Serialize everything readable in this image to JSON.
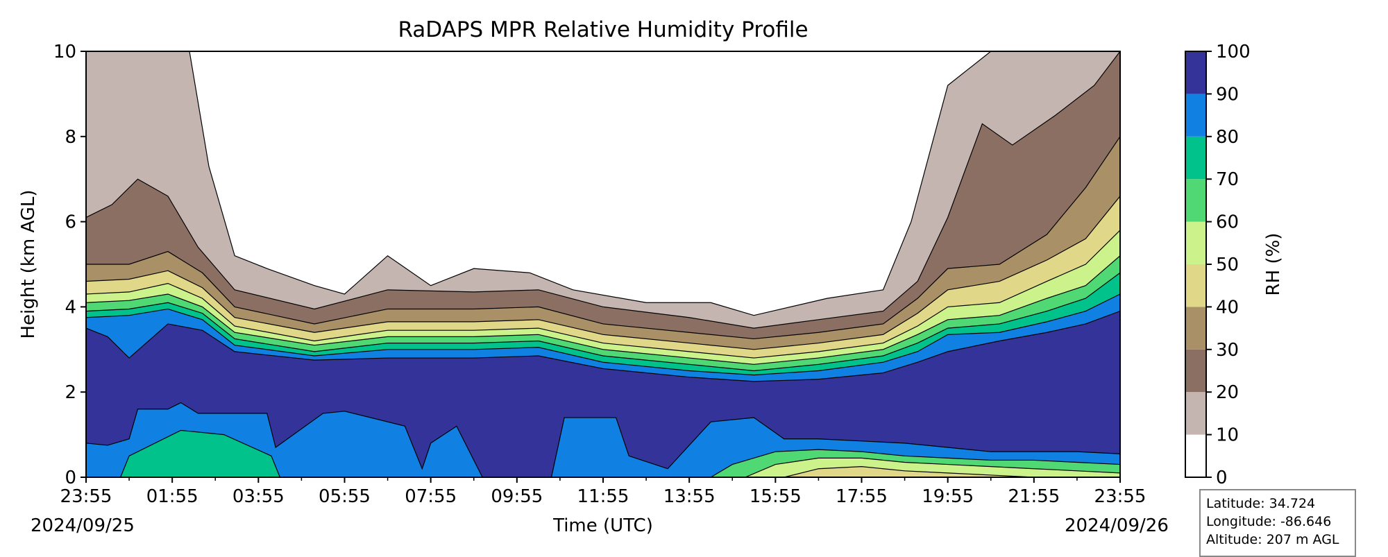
{
  "chart_data": {
    "type": "heatmap",
    "subtype": "filled-contour",
    "title": "RaDAPS MPR Relative Humidity Profile",
    "xlabel": "Time (UTC)",
    "ylabel": "Height (km AGL)",
    "ylim": [
      0,
      10
    ],
    "yticks": [
      "0",
      "2",
      "4",
      "6",
      "8",
      "10"
    ],
    "xticks": [
      "23:55",
      "01:55",
      "03:55",
      "05:55",
      "07:55",
      "09:55",
      "11:55",
      "13:55",
      "15:55",
      "17:55",
      "19:55",
      "21:55",
      "23:55"
    ],
    "start_date": "2024/09/25",
    "end_date": "2024/09/26",
    "colorbar": {
      "label": "RH (%)",
      "levels": [
        0,
        10,
        20,
        30,
        40,
        50,
        60,
        70,
        80,
        90,
        100
      ],
      "tick_labels": [
        "0",
        "10",
        "20",
        "30",
        "40",
        "50",
        "60",
        "70",
        "80",
        "90",
        "100"
      ],
      "colors": [
        "#ffffff",
        "#c5b5b1",
        "#8c6f63",
        "#a99066",
        "#e1d788",
        "#ccf28c",
        "#4fd874",
        "#00c28a",
        "#1080e3",
        "#33339a"
      ]
    },
    "contours": {
      "upper_boundaries_km": [
        {
          "level": 10,
          "points": [
            [
              0,
              10
            ],
            [
              1.0,
              10
            ],
            [
              2.4,
              10
            ],
            [
              2.85,
              7.3
            ],
            [
              3.45,
              5.2
            ],
            [
              4.2,
              4.9
            ],
            [
              5.3,
              4.5
            ],
            [
              6.0,
              4.3
            ],
            [
              7.0,
              5.2
            ],
            [
              8.0,
              4.5
            ],
            [
              9.0,
              4.9
            ],
            [
              10.3,
              4.8
            ],
            [
              11.3,
              4.4
            ],
            [
              13.0,
              4.1
            ],
            [
              14.5,
              4.1
            ],
            [
              15.5,
              3.8
            ],
            [
              17.2,
              4.2
            ],
            [
              18.5,
              4.4
            ],
            [
              19.15,
              6.0
            ],
            [
              20.0,
              9.2
            ],
            [
              21.0,
              10
            ],
            [
              24.0,
              10
            ]
          ]
        },
        {
          "level": 20,
          "points": [
            [
              0,
              6.1
            ],
            [
              0.6,
              6.4
            ],
            [
              1.2,
              7.0
            ],
            [
              1.9,
              6.6
            ],
            [
              2.6,
              5.4
            ],
            [
              3.45,
              4.4
            ],
            [
              5.3,
              3.95
            ],
            [
              7.0,
              4.4
            ],
            [
              9.0,
              4.35
            ],
            [
              10.5,
              4.4
            ],
            [
              12.0,
              4.0
            ],
            [
              14.0,
              3.75
            ],
            [
              15.5,
              3.5
            ],
            [
              17.0,
              3.7
            ],
            [
              18.5,
              3.9
            ],
            [
              19.3,
              4.6
            ],
            [
              20.0,
              6.1
            ],
            [
              20.8,
              8.3
            ],
            [
              21.5,
              7.8
            ],
            [
              22.5,
              8.5
            ],
            [
              23.4,
              9.2
            ],
            [
              24.0,
              10.0
            ]
          ]
        },
        {
          "level": 30,
          "points": [
            [
              0,
              5.0
            ],
            [
              1.0,
              5.0
            ],
            [
              1.9,
              5.3
            ],
            [
              2.7,
              4.8
            ],
            [
              3.45,
              4.0
            ],
            [
              5.3,
              3.6
            ],
            [
              7.0,
              3.95
            ],
            [
              9.0,
              3.95
            ],
            [
              10.5,
              4.0
            ],
            [
              12.0,
              3.6
            ],
            [
              14.0,
              3.4
            ],
            [
              15.5,
              3.25
            ],
            [
              17.0,
              3.4
            ],
            [
              18.5,
              3.6
            ],
            [
              19.3,
              4.2
            ],
            [
              20.0,
              4.9
            ],
            [
              21.2,
              5.0
            ],
            [
              22.3,
              5.7
            ],
            [
              23.2,
              6.8
            ],
            [
              24.0,
              8.0
            ]
          ]
        },
        {
          "level": 40,
          "points": [
            [
              0,
              4.6
            ],
            [
              1.0,
              4.65
            ],
            [
              1.9,
              4.85
            ],
            [
              2.7,
              4.45
            ],
            [
              3.45,
              3.75
            ],
            [
              5.3,
              3.4
            ],
            [
              7.0,
              3.65
            ],
            [
              9.0,
              3.65
            ],
            [
              10.5,
              3.7
            ],
            [
              12.0,
              3.35
            ],
            [
              14.0,
              3.15
            ],
            [
              15.5,
              3.0
            ],
            [
              17.0,
              3.15
            ],
            [
              18.5,
              3.35
            ],
            [
              19.3,
              3.85
            ],
            [
              20.0,
              4.4
            ],
            [
              21.2,
              4.6
            ],
            [
              22.3,
              5.1
            ],
            [
              23.2,
              5.6
            ],
            [
              24.0,
              6.6
            ]
          ]
        },
        {
          "level": 50,
          "points": [
            [
              0,
              4.3
            ],
            [
              1.0,
              4.35
            ],
            [
              1.9,
              4.55
            ],
            [
              2.7,
              4.2
            ],
            [
              3.45,
              3.55
            ],
            [
              5.3,
              3.2
            ],
            [
              7.0,
              3.45
            ],
            [
              9.0,
              3.45
            ],
            [
              10.5,
              3.5
            ],
            [
              12.0,
              3.15
            ],
            [
              14.0,
              2.95
            ],
            [
              15.5,
              2.8
            ],
            [
              17.0,
              2.95
            ],
            [
              18.5,
              3.15
            ],
            [
              19.3,
              3.55
            ],
            [
              20.0,
              4.0
            ],
            [
              21.2,
              4.1
            ],
            [
              22.3,
              4.6
            ],
            [
              23.2,
              5.0
            ],
            [
              24.0,
              5.8
            ]
          ]
        },
        {
          "level": 60,
          "points": [
            [
              0,
              4.1
            ],
            [
              1.0,
              4.15
            ],
            [
              1.9,
              4.3
            ],
            [
              2.7,
              4.0
            ],
            [
              3.45,
              3.4
            ],
            [
              5.3,
              3.1
            ],
            [
              7.0,
              3.3
            ],
            [
              9.0,
              3.3
            ],
            [
              10.5,
              3.35
            ],
            [
              12.0,
              3.0
            ],
            [
              14.0,
              2.8
            ],
            [
              15.5,
              2.65
            ],
            [
              17.0,
              2.8
            ],
            [
              18.5,
              3.0
            ],
            [
              19.3,
              3.35
            ],
            [
              20.0,
              3.7
            ],
            [
              21.2,
              3.8
            ],
            [
              22.3,
              4.2
            ],
            [
              23.2,
              4.5
            ],
            [
              24.0,
              5.2
            ]
          ]
        },
        {
          "level": 70,
          "points": [
            [
              0,
              3.9
            ],
            [
              1.0,
              3.95
            ],
            [
              1.9,
              4.1
            ],
            [
              2.7,
              3.85
            ],
            [
              3.45,
              3.25
            ],
            [
              5.3,
              2.95
            ],
            [
              7.0,
              3.15
            ],
            [
              9.0,
              3.15
            ],
            [
              10.5,
              3.2
            ],
            [
              12.0,
              2.85
            ],
            [
              14.0,
              2.65
            ],
            [
              15.5,
              2.5
            ],
            [
              17.0,
              2.65
            ],
            [
              18.5,
              2.85
            ],
            [
              19.3,
              3.15
            ],
            [
              20.0,
              3.5
            ],
            [
              21.2,
              3.6
            ],
            [
              22.3,
              3.9
            ],
            [
              23.2,
              4.2
            ],
            [
              24.0,
              4.8
            ]
          ]
        },
        {
          "level": 80,
          "points": [
            [
              0,
              3.75
            ],
            [
              1.0,
              3.8
            ],
            [
              1.9,
              3.95
            ],
            [
              2.7,
              3.7
            ],
            [
              3.45,
              3.1
            ],
            [
              5.3,
              2.85
            ],
            [
              7.0,
              3.0
            ],
            [
              9.0,
              3.0
            ],
            [
              10.5,
              3.05
            ],
            [
              12.0,
              2.7
            ],
            [
              14.0,
              2.5
            ],
            [
              15.5,
              2.4
            ],
            [
              17.0,
              2.5
            ],
            [
              18.5,
              2.7
            ],
            [
              19.3,
              2.95
            ],
            [
              20.0,
              3.35
            ],
            [
              21.2,
              3.4
            ],
            [
              22.3,
              3.65
            ],
            [
              23.2,
              3.9
            ],
            [
              24.0,
              4.3
            ]
          ]
        },
        {
          "level": 90,
          "points": [
            [
              0,
              3.5
            ],
            [
              0.5,
              3.3
            ],
            [
              1.0,
              2.8
            ],
            [
              1.9,
              3.6
            ],
            [
              2.7,
              3.45
            ],
            [
              3.45,
              2.95
            ],
            [
              5.3,
              2.75
            ],
            [
              7.0,
              2.8
            ],
            [
              9.0,
              2.8
            ],
            [
              10.5,
              2.85
            ],
            [
              12.0,
              2.55
            ],
            [
              14.0,
              2.35
            ],
            [
              15.5,
              2.25
            ],
            [
              17.0,
              2.3
            ],
            [
              18.5,
              2.45
            ],
            [
              19.3,
              2.7
            ],
            [
              20.0,
              2.95
            ],
            [
              21.2,
              3.2
            ],
            [
              22.3,
              3.4
            ],
            [
              23.2,
              3.6
            ],
            [
              24.0,
              3.9
            ]
          ]
        }
      ],
      "lower_patches_km": [
        {
          "level": 90,
          "points": [
            [
              0,
              0.8
            ],
            [
              0.5,
              0.75
            ],
            [
              1.0,
              0.9
            ],
            [
              1.2,
              1.6
            ],
            [
              1.9,
              1.6
            ],
            [
              2.2,
              1.75
            ],
            [
              2.6,
              1.5
            ],
            [
              3.1,
              1.5
            ],
            [
              3.6,
              1.5
            ],
            [
              4.2,
              1.5
            ],
            [
              4.4,
              0.7
            ],
            [
              5.5,
              1.5
            ],
            [
              6.0,
              1.55
            ],
            [
              7.4,
              1.2
            ],
            [
              7.8,
              0.2
            ],
            [
              8.0,
              0.8
            ],
            [
              8.6,
              1.2
            ],
            [
              9.2,
              0.0
            ],
            [
              10.8,
              0.0
            ],
            [
              11.1,
              1.4
            ],
            [
              12.3,
              1.4
            ],
            [
              12.6,
              0.5
            ],
            [
              13.5,
              0.2
            ],
            [
              14.5,
              1.3
            ],
            [
              15.5,
              1.4
            ],
            [
              16.2,
              0.9
            ],
            [
              17.0,
              0.9
            ],
            [
              18.0,
              0.85
            ],
            [
              19.0,
              0.8
            ],
            [
              20.0,
              0.7
            ],
            [
              21.0,
              0.6
            ],
            [
              22.0,
              0.6
            ],
            [
              23.0,
              0.6
            ],
            [
              24.0,
              0.55
            ]
          ]
        },
        {
          "level": 80,
          "points": [
            [
              0.8,
              0.0
            ],
            [
              1.0,
              0.5
            ],
            [
              2.2,
              1.1
            ],
            [
              3.2,
              1.0
            ],
            [
              4.3,
              0.5
            ],
            [
              4.5,
              0.0
            ]
          ]
        },
        {
          "level": 70,
          "points": [
            [
              14.5,
              0.0
            ],
            [
              15.0,
              0.3
            ],
            [
              16.0,
              0.6
            ],
            [
              17.0,
              0.65
            ],
            [
              18.0,
              0.6
            ],
            [
              19.0,
              0.5
            ],
            [
              20.0,
              0.45
            ],
            [
              21.0,
              0.4
            ],
            [
              22.0,
              0.4
            ],
            [
              23.0,
              0.35
            ],
            [
              24.0,
              0.3
            ]
          ]
        },
        {
          "level": 60,
          "points": [
            [
              15.3,
              0.0
            ],
            [
              16.0,
              0.3
            ],
            [
              17.0,
              0.45
            ],
            [
              18.0,
              0.45
            ],
            [
              19.0,
              0.35
            ],
            [
              20.0,
              0.3
            ],
            [
              21.0,
              0.25
            ],
            [
              22.0,
              0.2
            ],
            [
              23.0,
              0.15
            ],
            [
              24.0,
              0.1
            ]
          ]
        },
        {
          "level": 50,
          "points": [
            [
              16.2,
              0.0
            ],
            [
              17.0,
              0.2
            ],
            [
              18.0,
              0.25
            ],
            [
              19.0,
              0.15
            ],
            [
              20.0,
              0.1
            ],
            [
              21.0,
              0.05
            ],
            [
              22.0,
              0.0
            ]
          ]
        }
      ]
    }
  },
  "info": {
    "latitude": "Latitude: 34.724",
    "longitude": "Longitude: -86.646",
    "altitude": "Altitude: 207 m AGL"
  }
}
